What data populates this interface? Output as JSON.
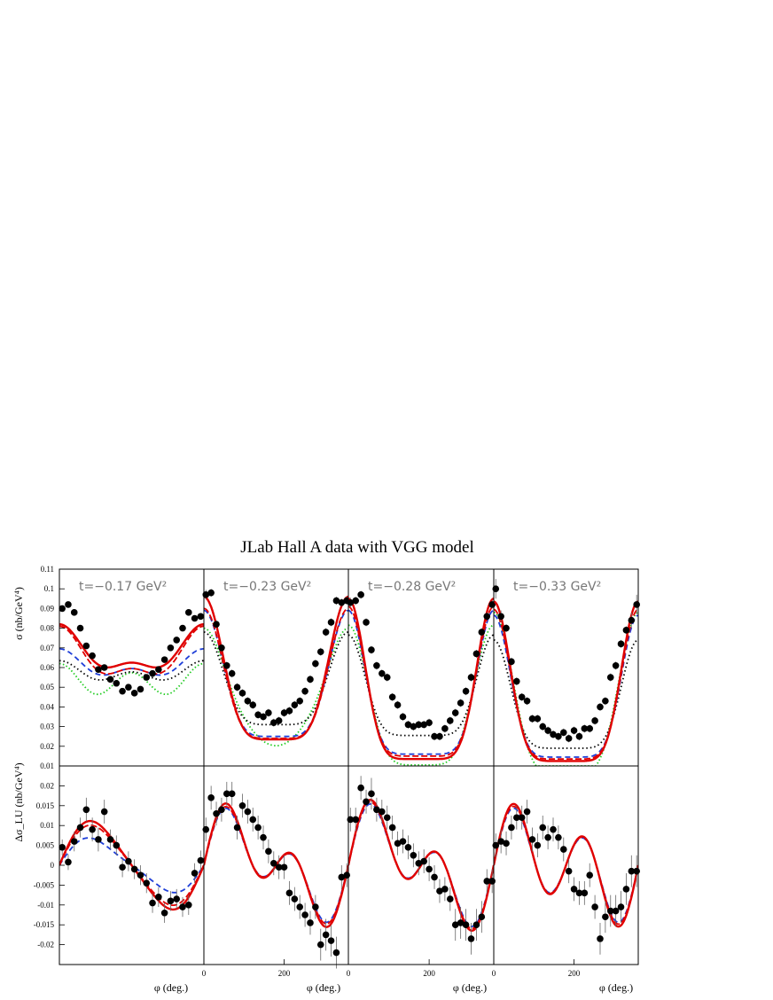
{
  "chart_data": {
    "type": "scatter",
    "title": "JLab Hall A data with VGG model",
    "xlabel": "φ (deg.)",
    "x_ticks": [
      0,
      200
    ],
    "xlim": [
      0,
      360
    ],
    "top_row": {
      "ylabel": "σ (nb/GeV⁴)",
      "ylim": [
        0.01,
        0.11
      ],
      "y_ticks": [
        "0.01",
        "0.02",
        "0.03",
        "0.04",
        "0.05",
        "0.06",
        "0.07",
        "0.08",
        "0.09",
        "0.1",
        "0.11"
      ],
      "panels": [
        {
          "label": "t=−0.17 GeV²",
          "x": [
            7,
            22,
            37,
            52,
            67,
            82,
            97,
            112,
            127,
            142,
            157,
            172,
            187,
            202,
            217,
            232,
            247,
            262,
            277,
            292,
            307,
            322,
            337,
            352
          ],
          "y": [
            0.09,
            0.092,
            0.088,
            0.08,
            0.071,
            0.066,
            0.059,
            0.06,
            0.054,
            0.052,
            0.048,
            0.05,
            0.047,
            0.049,
            0.055,
            0.057,
            0.059,
            0.064,
            0.07,
            0.074,
            0.08,
            0.088,
            0.085,
            0.086
          ],
          "err": [
            0.0015,
            0.0015,
            0.0015,
            0.0015,
            0.0015,
            0.0015,
            0.0015,
            0.0015,
            0.0015,
            0.0015,
            0.0015,
            0.0015,
            0.0015,
            0.0015,
            0.0015,
            0.0015,
            0.0015,
            0.0015,
            0.0015,
            0.0015,
            0.0015,
            0.0015,
            0.0015,
            0.0015
          ]
        },
        {
          "label": "t=−0.23 GeV²",
          "x": [
            5,
            18,
            31,
            44,
            57,
            70,
            83,
            96,
            109,
            122,
            135,
            148,
            161,
            174,
            187,
            200,
            213,
            226,
            239,
            252,
            265,
            278,
            291,
            304,
            317,
            330,
            343,
            356
          ],
          "y": [
            0.097,
            0.098,
            0.082,
            0.07,
            0.061,
            0.057,
            0.05,
            0.047,
            0.043,
            0.041,
            0.036,
            0.035,
            0.037,
            0.032,
            0.033,
            0.037,
            0.038,
            0.041,
            0.043,
            0.048,
            0.054,
            0.062,
            0.068,
            0.078,
            0.083,
            0.094,
            0.093,
            0.094
          ],
          "err": [
            0.0025,
            0.002,
            0.002,
            0.002,
            0.002,
            0.002,
            0.002,
            0.002,
            0.002,
            0.002,
            0.002,
            0.002,
            0.002,
            0.002,
            0.002,
            0.002,
            0.002,
            0.002,
            0.002,
            0.002,
            0.002,
            0.002,
            0.002,
            0.002,
            0.002,
            0.002,
            0.002,
            0.002
          ]
        },
        {
          "label": "t=−0.28 GeV²",
          "x": [
            5,
            18,
            31,
            44,
            57,
            70,
            83,
            96,
            109,
            122,
            135,
            148,
            161,
            174,
            187,
            200,
            213,
            226,
            239,
            252,
            265,
            278,
            291,
            304,
            317,
            330,
            343,
            356
          ],
          "y": [
            0.093,
            0.094,
            0.097,
            0.083,
            0.069,
            0.061,
            0.057,
            0.055,
            0.045,
            0.041,
            0.035,
            0.031,
            0.03,
            0.031,
            0.031,
            0.032,
            0.025,
            0.025,
            0.029,
            0.033,
            0.037,
            0.042,
            0.048,
            0.055,
            0.067,
            0.078,
            0.086,
            0.092
          ],
          "err": [
            0.0025,
            0.002,
            0.002,
            0.002,
            0.002,
            0.002,
            0.002,
            0.002,
            0.002,
            0.002,
            0.002,
            0.002,
            0.002,
            0.002,
            0.002,
            0.002,
            0.002,
            0.002,
            0.002,
            0.002,
            0.002,
            0.002,
            0.002,
            0.002,
            0.002,
            0.002,
            0.002,
            0.002
          ]
        },
        {
          "label": "t=−0.33 GeV²",
          "x": [
            5,
            18,
            31,
            44,
            57,
            70,
            83,
            96,
            109,
            122,
            135,
            148,
            161,
            174,
            187,
            200,
            213,
            226,
            239,
            252,
            265,
            278,
            291,
            304,
            317,
            330,
            343,
            356
          ],
          "y": [
            0.1,
            0.086,
            0.08,
            0.063,
            0.053,
            0.045,
            0.043,
            0.034,
            0.034,
            0.03,
            0.028,
            0.026,
            0.025,
            0.027,
            0.024,
            0.028,
            0.025,
            0.029,
            0.029,
            0.033,
            0.04,
            0.043,
            0.055,
            0.061,
            0.072,
            0.079,
            0.084,
            0.092
          ],
          "err": [
            0.005,
            0.003,
            0.002,
            0.002,
            0.002,
            0.002,
            0.002,
            0.002,
            0.002,
            0.002,
            0.002,
            0.002,
            0.002,
            0.002,
            0.002,
            0.002,
            0.002,
            0.002,
            0.002,
            0.002,
            0.002,
            0.002,
            0.002,
            0.002,
            0.002,
            0.002,
            0.004,
            0.005
          ]
        }
      ]
    },
    "bottom_row": {
      "ylabel": "Δσ_LU (nb/GeV⁴)",
      "ylim": [
        -0.025,
        0.025
      ],
      "y_ticks": [
        "-0.02",
        "-0.015",
        "-0.01",
        "-0.005",
        "0",
        "0.005",
        "0.01",
        "0.015",
        "0.02"
      ],
      "panels": [
        {
          "x": [
            7,
            22,
            37,
            52,
            67,
            82,
            97,
            112,
            127,
            142,
            157,
            172,
            187,
            202,
            217,
            232,
            247,
            262,
            277,
            292,
            307,
            322,
            337,
            352
          ],
          "y": [
            0.0045,
            0.0008,
            0.006,
            0.0095,
            0.014,
            0.009,
            0.0065,
            0.0135,
            0.0065,
            0.005,
            -0.0005,
            0.001,
            -0.001,
            -0.0025,
            -0.0045,
            -0.0095,
            -0.008,
            -0.012,
            -0.009,
            -0.0085,
            -0.0105,
            -0.01,
            -0.002,
            0.0012
          ],
          "err": [
            0.002,
            0.002,
            0.0025,
            0.0025,
            0.003,
            0.003,
            0.003,
            0.003,
            0.0025,
            0.0025,
            0.0025,
            0.0025,
            0.0025,
            0.0025,
            0.0025,
            0.0025,
            0.0025,
            0.0025,
            0.0025,
            0.0025,
            0.0025,
            0.0025,
            0.0025,
            0.0025
          ]
        },
        {
          "x": [
            5,
            18,
            31,
            44,
            57,
            70,
            83,
            96,
            109,
            122,
            135,
            148,
            161,
            174,
            187,
            200,
            213,
            226,
            239,
            252,
            265,
            278,
            291,
            304,
            317,
            330,
            343,
            356
          ],
          "y": [
            0.009,
            0.017,
            0.013,
            0.014,
            0.018,
            0.018,
            0.0095,
            0.015,
            0.0135,
            0.0115,
            0.0095,
            0.007,
            0.0035,
            0.0005,
            -0.0005,
            -0.0005,
            -0.007,
            -0.0085,
            -0.0105,
            -0.0125,
            -0.0145,
            -0.0105,
            -0.02,
            -0.0175,
            -0.019,
            -0.022,
            -0.003,
            -0.0025
          ],
          "err": [
            0.003,
            0.003,
            0.003,
            0.003,
            0.003,
            0.003,
            0.003,
            0.003,
            0.003,
            0.003,
            0.003,
            0.003,
            0.003,
            0.003,
            0.003,
            0.003,
            0.003,
            0.003,
            0.003,
            0.003,
            0.003,
            0.003,
            0.004,
            0.004,
            0.004,
            0.004,
            0.003,
            0.003
          ]
        },
        {
          "x": [
            5,
            18,
            31,
            44,
            57,
            70,
            83,
            96,
            109,
            122,
            135,
            148,
            161,
            174,
            187,
            200,
            213,
            226,
            239,
            252,
            265,
            278,
            291,
            304,
            317,
            330,
            343,
            356
          ],
          "y": [
            0.0115,
            0.0115,
            0.0195,
            0.016,
            0.018,
            0.014,
            0.0135,
            0.012,
            0.0095,
            0.0055,
            0.006,
            0.0045,
            0.0025,
            0.0005,
            0.001,
            -0.001,
            -0.003,
            -0.0065,
            -0.006,
            -0.0085,
            -0.015,
            -0.0145,
            -0.015,
            -0.0185,
            -0.015,
            -0.013,
            -0.004,
            -0.004
          ],
          "err": [
            0.003,
            0.003,
            0.003,
            0.003,
            0.004,
            0.003,
            0.003,
            0.003,
            0.003,
            0.003,
            0.003,
            0.003,
            0.003,
            0.003,
            0.003,
            0.003,
            0.003,
            0.003,
            0.003,
            0.003,
            0.004,
            0.004,
            0.004,
            0.004,
            0.004,
            0.004,
            0.003,
            0.003
          ]
        },
        {
          "x": [
            5,
            18,
            31,
            44,
            57,
            70,
            83,
            96,
            109,
            122,
            135,
            148,
            161,
            174,
            187,
            200,
            213,
            226,
            239,
            252,
            265,
            278,
            291,
            304,
            317,
            330,
            343,
            356
          ],
          "y": [
            0.005,
            0.006,
            0.0055,
            0.0095,
            0.012,
            0.012,
            0.0135,
            0.0065,
            0.005,
            0.0095,
            0.007,
            0.009,
            0.007,
            0.004,
            -0.0015,
            -0.006,
            -0.007,
            -0.007,
            -0.0025,
            -0.0105,
            -0.0185,
            -0.013,
            -0.0115,
            -0.0115,
            -0.0105,
            -0.006,
            -0.0015,
            -0.0015
          ],
          "err": [
            0.003,
            0.003,
            0.003,
            0.003,
            0.003,
            0.003,
            0.003,
            0.003,
            0.003,
            0.003,
            0.003,
            0.003,
            0.003,
            0.003,
            0.003,
            0.003,
            0.003,
            0.003,
            0.003,
            0.003,
            0.004,
            0.004,
            0.004,
            0.004,
            0.004,
            0.004,
            0.004,
            0.004
          ]
        }
      ]
    }
  }
}
